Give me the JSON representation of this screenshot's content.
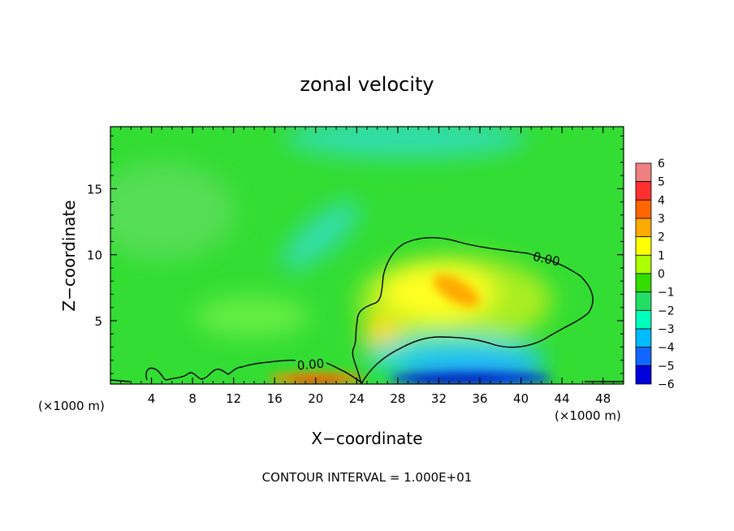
{
  "chart_data": {
    "type": "heatmap",
    "title": "zonal velocity",
    "xlabel": "X−coordinate",
    "ylabel": "Z−coordinate",
    "x_units_left": "(×1000 m)",
    "x_units_right": "(×1000 m)",
    "footer": "CONTOUR INTERVAL = 1.000E+01",
    "xlim": [
      0,
      50
    ],
    "ylim": [
      0.2,
      19.7
    ],
    "x_ticks": [
      4,
      8,
      12,
      16,
      20,
      24,
      28,
      32,
      36,
      40,
      44,
      48
    ],
    "y_ticks": [
      5,
      10,
      15
    ],
    "colorbar_levels": [
      6,
      5,
      4,
      3,
      2,
      1,
      0,
      -1,
      -2,
      -3,
      -4,
      -5,
      -6
    ],
    "colorbar_colors": [
      "#f08080",
      "#ff3030",
      "#ff6600",
      "#ffaa00",
      "#ffff00",
      "#aaff00",
      "#33dd00",
      "#22dd66",
      "#00ffbb",
      "#00bbff",
      "#1166ff",
      "#0000dd",
      "#6600aa"
    ],
    "contour_label": "0.00",
    "contour_labels": [
      {
        "text": "0.00",
        "x": 43,
        "y": 9.7
      },
      {
        "text": "0.00",
        "x": 18.5,
        "y": 1.6
      }
    ],
    "field_features": [
      {
        "kind": "max",
        "x": 33.5,
        "z": 7.3,
        "value": 3
      },
      {
        "kind": "max",
        "x": 19,
        "z": 0.35,
        "value": 4
      },
      {
        "kind": "min",
        "x": 33,
        "z": 0.3,
        "value": -5
      },
      {
        "kind": "min",
        "x": 21,
        "z": 10.5,
        "value": -1.5
      },
      {
        "kind": "min",
        "x": 33,
        "z": 19,
        "value": -1.5
      }
    ],
    "grid": false,
    "legend": "colorbar-right"
  }
}
